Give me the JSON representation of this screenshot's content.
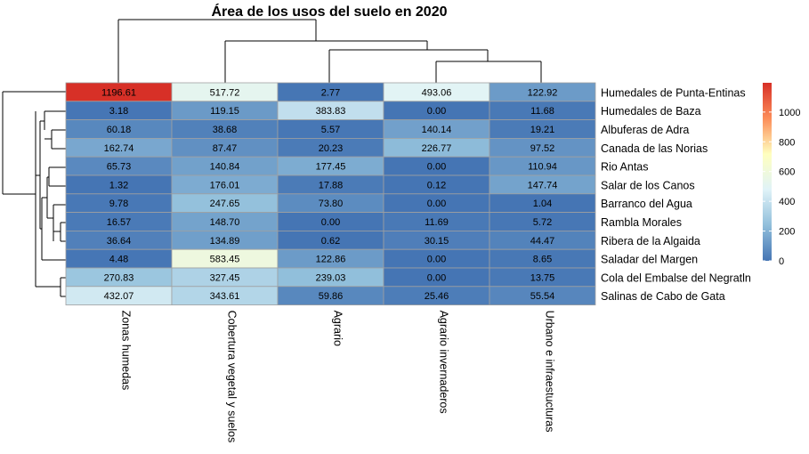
{
  "chart_data": {
    "type": "heatmap",
    "title": "Área de los usos del suelo en 2020",
    "columns": [
      "Zonas humedas",
      "Cobertura vegetal y suelos",
      "Agrario",
      "Agrario invernaderos",
      "Urbano e infraestucturas"
    ],
    "rows": [
      "Humedales de Punta-Entinas",
      "Humedales de Baza",
      "Albuferas de Adra",
      "Canada de las Norias",
      "Rio Antas",
      "Salar de los Canos",
      "Barranco del Agua",
      "Rambla Morales",
      "Ribera de la Algaida",
      "Saladar del Margen",
      "Cola del Embalse del Negratln",
      "Salinas de Cabo de Gata"
    ],
    "values": [
      [
        1196.61,
        517.72,
        2.77,
        493.06,
        122.92
      ],
      [
        3.18,
        119.15,
        383.83,
        0.0,
        11.68
      ],
      [
        60.18,
        38.68,
        5.57,
        140.14,
        19.21
      ],
      [
        162.74,
        87.47,
        20.23,
        226.77,
        97.52
      ],
      [
        65.73,
        140.84,
        177.45,
        0.0,
        110.94
      ],
      [
        1.32,
        176.01,
        17.88,
        0.12,
        147.74
      ],
      [
        9.78,
        247.65,
        73.8,
        0.0,
        1.04
      ],
      [
        16.57,
        148.7,
        0.0,
        11.69,
        5.72
      ],
      [
        36.64,
        134.89,
        0.62,
        30.15,
        44.47
      ],
      [
        4.48,
        583.45,
        122.86,
        0.0,
        8.65
      ],
      [
        270.83,
        327.45,
        239.03,
        0.0,
        13.75
      ],
      [
        432.07,
        343.61,
        59.86,
        25.46,
        55.54
      ]
    ],
    "cell_labels": [
      [
        "1196.61",
        "517.72",
        "2.77",
        "493.06",
        "122.92"
      ],
      [
        "3.18",
        "119.15",
        "383.83",
        "0.00",
        "11.68"
      ],
      [
        "60.18",
        "38.68",
        "5.57",
        "140.14",
        "19.21"
      ],
      [
        "162.74",
        "87.47",
        "20.23",
        "226.77",
        "97.52"
      ],
      [
        "65.73",
        "140.84",
        "177.45",
        "0.00",
        "110.94"
      ],
      [
        "1.32",
        "176.01",
        "17.88",
        "0.12",
        "147.74"
      ],
      [
        "9.78",
        "247.65",
        "73.80",
        "0.00",
        "1.04"
      ],
      [
        "16.57",
        "148.70",
        "0.00",
        "11.69",
        "5.72"
      ],
      [
        "36.64",
        "134.89",
        "0.62",
        "30.15",
        "44.47"
      ],
      [
        "4.48",
        "583.45",
        "122.86",
        "0.00",
        "8.65"
      ],
      [
        "270.83",
        "327.45",
        "239.03",
        "0.00",
        "13.75"
      ],
      [
        "432.07",
        "343.61",
        "59.86",
        "25.46",
        "55.54"
      ]
    ],
    "color_scale": {
      "min": 0,
      "max": 1196.61,
      "colors": [
        "#4575B4",
        "#91BFDB",
        "#E0F3F8",
        "#FFFFBF",
        "#FC8D59",
        "#D73027"
      ],
      "ticks": [
        0,
        200,
        400,
        600,
        800,
        1000
      ],
      "tick_labels": [
        "0",
        "200",
        "400",
        "600",
        "800",
        "1000"
      ]
    },
    "legend_position": "right",
    "row_dendrogram": "left",
    "column_dendrogram": "top"
  }
}
